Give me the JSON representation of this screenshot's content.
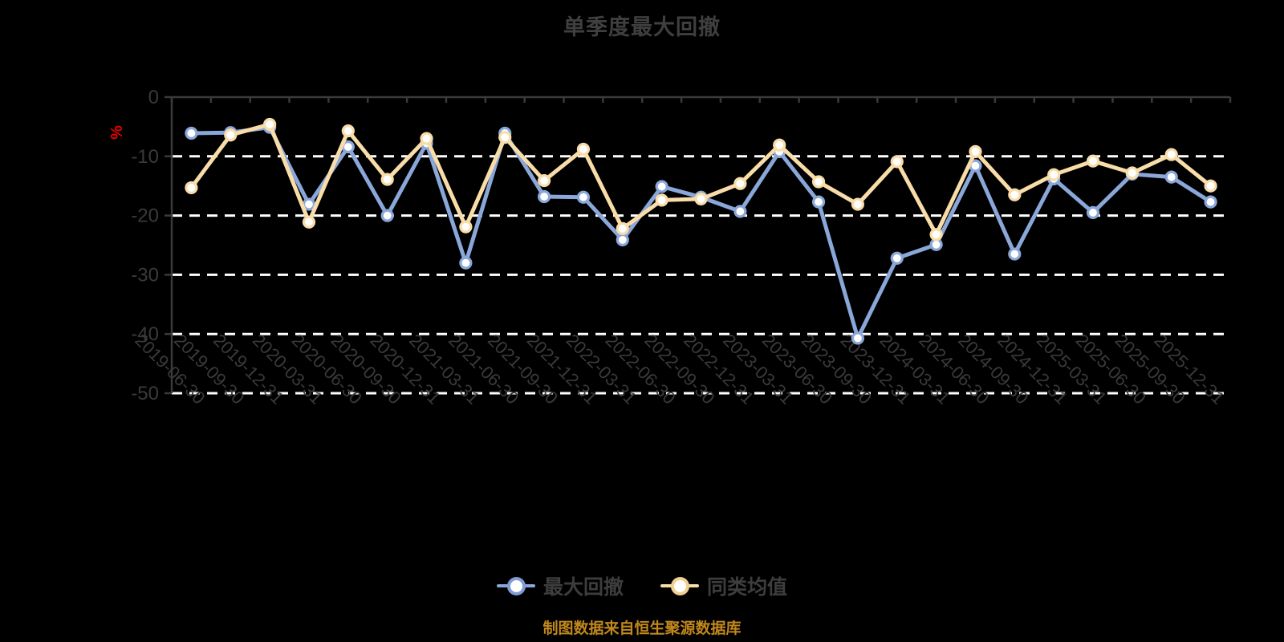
{
  "title": "单季度最大回撤",
  "source_note": "制图数据来自恒生聚源数据库",
  "legend": {
    "items": [
      {
        "label": "最大回撤",
        "line_color": "#8aa7d9",
        "marker_stroke": "#7f9dd3"
      },
      {
        "label": "同类均值",
        "line_color": "#f9dda9",
        "marker_stroke": "#f2cf92"
      }
    ]
  },
  "y_axis": {
    "unit": "%",
    "unit_color": "#e60000",
    "ticks": [
      "0",
      "-10",
      "-20",
      "-30",
      "-40",
      "-50"
    ]
  },
  "style_colors": {
    "background": "#000000",
    "axis": "#3a3a3a",
    "axis_label": "#3a3a3a",
    "gridline": "#ffffff",
    "marker_fill": "#ffffff"
  },
  "chart_data": {
    "type": "line",
    "title": "单季度最大回撤",
    "xlabel": "",
    "ylabel": "%",
    "ylim": [
      -50,
      0
    ],
    "grid": "horizontal-dashed-white",
    "legend_position": "bottom",
    "categories": [
      "2019-06-30",
      "2019-09-30",
      "2019-12-31",
      "2020-03-31",
      "2020-06-30",
      "2020-09-30",
      "2020-12-31",
      "2021-03-31",
      "2021-06-30",
      "2021-09-30",
      "2021-12-31",
      "2022-03-31",
      "2022-06-30",
      "2022-09-30",
      "2022-12-31",
      "2023-03-31",
      "2023-06-30",
      "2023-09-30",
      "2023-12-31",
      "2024-03-31",
      "2024-06-30",
      "2024-09-30",
      "2024-12-31",
      "2025-03-31",
      "2025-06-30",
      "2025-09-30",
      "2025-12-31"
    ],
    "series": [
      {
        "name": "最大回撤",
        "color": "#8aa7d9",
        "values": [
          -6.1,
          -6.0,
          -5.1,
          -18.1,
          -8.4,
          -20.0,
          -7.8,
          -28.0,
          -6.1,
          -16.8,
          -16.9,
          -24.1,
          -15.1,
          -16.9,
          -19.3,
          -9.2,
          -17.7,
          -40.7,
          -27.2,
          -24.9,
          -11.6,
          -26.5,
          -13.8,
          -19.5,
          -13.0,
          -13.5,
          -17.7
        ]
      },
      {
        "name": "同类均值",
        "color": "#f9dda9",
        "values": [
          -15.3,
          -6.4,
          -4.6,
          -21.1,
          -5.7,
          -13.9,
          -7.0,
          -21.9,
          -6.8,
          -14.1,
          -8.8,
          -22.2,
          -17.4,
          -17.2,
          -14.6,
          -8.1,
          -14.3,
          -18.1,
          -10.9,
          -23.2,
          -9.2,
          -16.5,
          -13.1,
          -10.8,
          -12.8,
          -9.7,
          -15.0
        ]
      }
    ]
  }
}
